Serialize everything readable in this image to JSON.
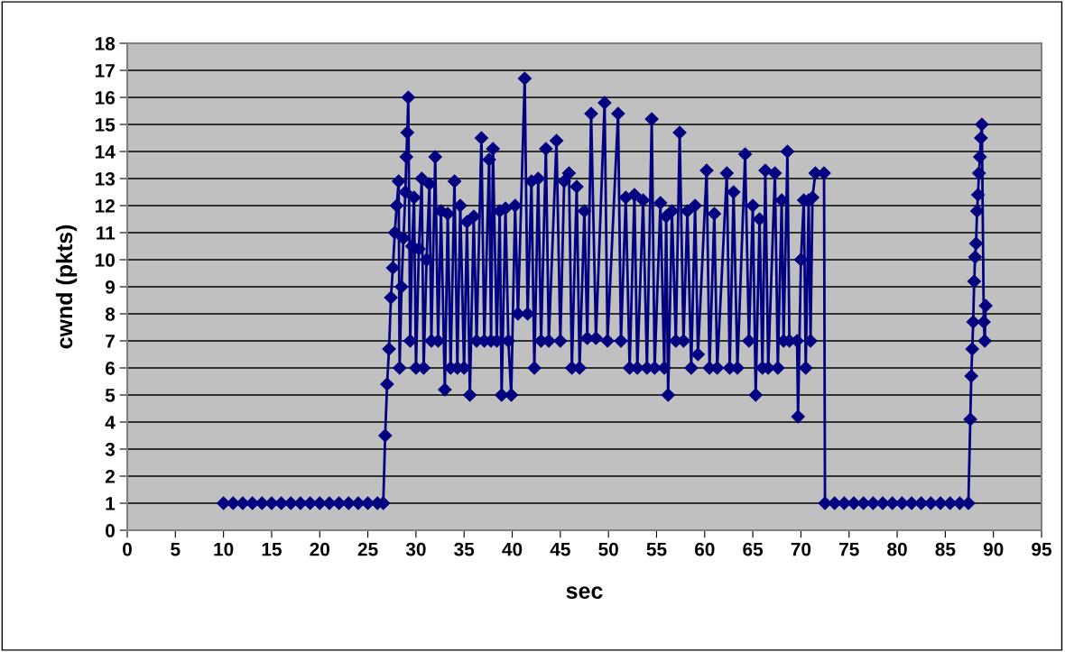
{
  "chart_data": {
    "type": "line",
    "xlabel": "sec",
    "ylabel": "cwnd (pkts)",
    "xlim": [
      0,
      95
    ],
    "xticks": [
      0,
      5,
      10,
      15,
      20,
      25,
      30,
      35,
      40,
      45,
      50,
      55,
      60,
      65,
      70,
      75,
      80,
      85,
      90,
      95
    ],
    "ylim": [
      0,
      18
    ],
    "yticks": [
      0,
      1,
      2,
      3,
      4,
      5,
      6,
      7,
      8,
      9,
      10,
      11,
      12,
      13,
      14,
      15,
      16,
      17,
      18
    ],
    "grid": "y",
    "marker": "diamond",
    "line_style": "solid",
    "legend": false,
    "series": [
      {
        "color": "#000080",
        "x": [
          10,
          11,
          12,
          13,
          14,
          15,
          16,
          17,
          18,
          19,
          20,
          21,
          22,
          23,
          24,
          25,
          26,
          26.6,
          26.8,
          27.0,
          27.2,
          27.4,
          27.6,
          27.8,
          28.0,
          28.2,
          28.3,
          28.5,
          28.7,
          28.9,
          29.0,
          29.1,
          29.2,
          29.4,
          29.6,
          29.8,
          30.0,
          30.3,
          30.6,
          30.8,
          31.1,
          31.4,
          31.6,
          32.0,
          32.3,
          32.6,
          33.0,
          33.3,
          33.6,
          34.0,
          34.3,
          34.6,
          35.0,
          35.3,
          35.6,
          36.0,
          36.3,
          36.8,
          37.1,
          37.6,
          37.8,
          38.0,
          38.4,
          38.7,
          38.9,
          39.3,
          39.6,
          39.9,
          40.3,
          40.6,
          41.3,
          41.6,
          42.0,
          42.3,
          42.7,
          43.0,
          43.5,
          43.8,
          44.6,
          45.0,
          45.4,
          45.9,
          46.2,
          46.7,
          47.0,
          47.5,
          47.8,
          48.2,
          48.7,
          49.6,
          49.9,
          51.0,
          51.3,
          51.8,
          52.2,
          52.7,
          53.0,
          53.6,
          54.0,
          54.5,
          54.8,
          55.4,
          55.8,
          56.0,
          56.2,
          56.6,
          57.0,
          57.4,
          57.8,
          58.2,
          58.6,
          59.0,
          59.3,
          60.2,
          60.5,
          61.0,
          61.3,
          62.3,
          62.6,
          63.0,
          63.4,
          64.2,
          64.6,
          65.0,
          65.3,
          65.7,
          66.0,
          66.3,
          66.6,
          67.3,
          67.6,
          68.0,
          68.2,
          68.6,
          68.8,
          69.6,
          69.7,
          70.0,
          70.3,
          70.5,
          70.8,
          71.0,
          71.2,
          71.5,
          72.4,
          72.5,
          73.5,
          74.5,
          75.5,
          76.5,
          77.5,
          78.5,
          79.5,
          80.5,
          81.5,
          82.5,
          83.5,
          84.5,
          85.5,
          86.5,
          87.4,
          87.6,
          87.7,
          87.8,
          87.9,
          88.0,
          88.1,
          88.2,
          88.3,
          88.4,
          88.5,
          88.6,
          88.7,
          88.8,
          89.0,
          89.1,
          89.2
        ],
        "values": [
          1,
          1,
          1,
          1,
          1,
          1,
          1,
          1,
          1,
          1,
          1,
          1,
          1,
          1,
          1,
          1,
          1,
          1,
          3.5,
          5.4,
          6.7,
          8.6,
          9.7,
          11.0,
          12.0,
          12.9,
          6.0,
          9.0,
          10.8,
          12.5,
          13.8,
          14.7,
          16.0,
          7.0,
          10.5,
          12.3,
          6.0,
          10.4,
          13.0,
          6.0,
          10.0,
          12.8,
          7.0,
          13.8,
          7.0,
          11.8,
          5.2,
          11.7,
          6.0,
          12.9,
          6.0,
          12.0,
          6.0,
          11.4,
          5.0,
          11.6,
          7.0,
          14.5,
          7.0,
          13.7,
          7.0,
          14.1,
          7.0,
          11.8,
          5.0,
          11.9,
          7.0,
          5.0,
          12.0,
          8.0,
          16.7,
          8.0,
          12.9,
          6.0,
          13.0,
          7.0,
          14.1,
          7.0,
          14.4,
          7.0,
          12.9,
          13.2,
          6.0,
          12.7,
          6.0,
          11.8,
          7.1,
          15.4,
          7.1,
          15.8,
          7.0,
          15.4,
          7.0,
          12.3,
          6.0,
          12.4,
          6.0,
          12.2,
          6.0,
          15.2,
          6.0,
          12.1,
          6.0,
          11.6,
          5.0,
          11.8,
          7.0,
          14.7,
          7.0,
          11.8,
          6.0,
          12.0,
          6.5,
          13.3,
          6.0,
          11.7,
          6.0,
          13.2,
          6.0,
          12.5,
          6.0,
          13.9,
          7.0,
          12.0,
          5.0,
          11.5,
          6.0,
          13.3,
          6.0,
          13.2,
          6.0,
          12.2,
          7.0,
          14.0,
          7.0,
          7.0,
          4.2,
          10.0,
          12.2,
          6.0,
          12.2,
          7.0,
          12.3,
          13.2,
          13.2,
          1,
          1,
          1,
          1,
          1,
          1,
          1,
          1,
          1,
          1,
          1,
          1,
          1,
          1,
          1,
          1,
          4.1,
          5.7,
          6.7,
          7.7,
          9.2,
          10.1,
          10.6,
          11.8,
          12.4,
          13.2,
          13.8,
          14.5,
          15.0,
          7.7,
          7.0,
          8.3
        ]
      }
    ]
  }
}
